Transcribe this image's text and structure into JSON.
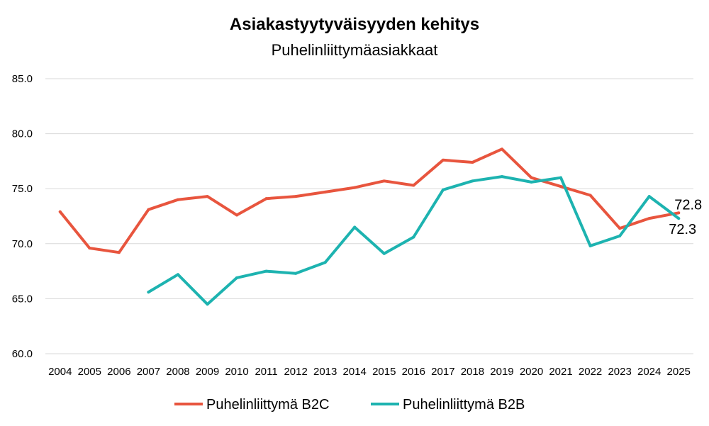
{
  "chart_data": {
    "type": "line",
    "title": "Asiakastyytyväisyyden kehitys",
    "subtitle": "Puhelinliittymäasiakkaat",
    "categories": [
      "2004",
      "2005",
      "2006",
      "2007",
      "2008",
      "2009",
      "2010",
      "2011",
      "2012",
      "2013",
      "2014",
      "2015",
      "2016",
      "2017",
      "2018",
      "2019",
      "2020",
      "2021",
      "2022",
      "2023",
      "2024",
      "2025"
    ],
    "ylim": [
      60,
      85
    ],
    "yticks": [
      "60.0",
      "65.0",
      "70.0",
      "75.0",
      "80.0",
      "85.0"
    ],
    "grid": true,
    "legend_position": "bottom",
    "series": [
      {
        "name": "Puhelinliittymä B2C",
        "color": "#e8553e",
        "values": [
          72.9,
          69.6,
          69.2,
          73.1,
          74.0,
          74.3,
          72.6,
          74.1,
          74.3,
          74.7,
          75.1,
          75.7,
          75.3,
          77.6,
          77.4,
          78.6,
          76.0,
          75.2,
          74.4,
          71.4,
          72.3,
          72.8
        ],
        "end_label": "72.8"
      },
      {
        "name": "Puhelinliittymä B2B",
        "color": "#1db3b0",
        "values": [
          null,
          null,
          null,
          65.6,
          67.2,
          64.5,
          66.9,
          67.5,
          67.3,
          68.3,
          71.5,
          69.1,
          70.6,
          74.9,
          75.7,
          76.1,
          75.6,
          76.0,
          69.8,
          70.7,
          74.3,
          72.3
        ],
        "end_label": "72.3"
      }
    ]
  }
}
